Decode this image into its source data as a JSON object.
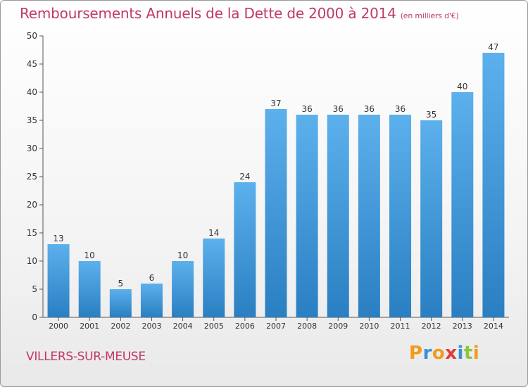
{
  "chart_data": {
    "type": "bar",
    "title": "Remboursements Annuels de la Dette de 2000 à 2014",
    "unit_note": "(en milliers d'€)",
    "categories": [
      "2000",
      "2001",
      "2002",
      "2003",
      "2004",
      "2005",
      "2006",
      "2007",
      "2008",
      "2009",
      "2010",
      "2011",
      "2012",
      "2013",
      "2014"
    ],
    "values": [
      13,
      10,
      5,
      6,
      10,
      14,
      24,
      37,
      36,
      36,
      36,
      36,
      35,
      40,
      47
    ],
    "ylim": [
      0,
      50
    ],
    "yticks": [
      0,
      5,
      10,
      15,
      20,
      25,
      30,
      35,
      40,
      45,
      50
    ],
    "xlabel": "",
    "ylabel": "",
    "grid": false,
    "bar_color": "#3f97db"
  },
  "footer": {
    "commune": "VILLERS-SUR-MEUSE",
    "logo_text": "Proxiti"
  }
}
